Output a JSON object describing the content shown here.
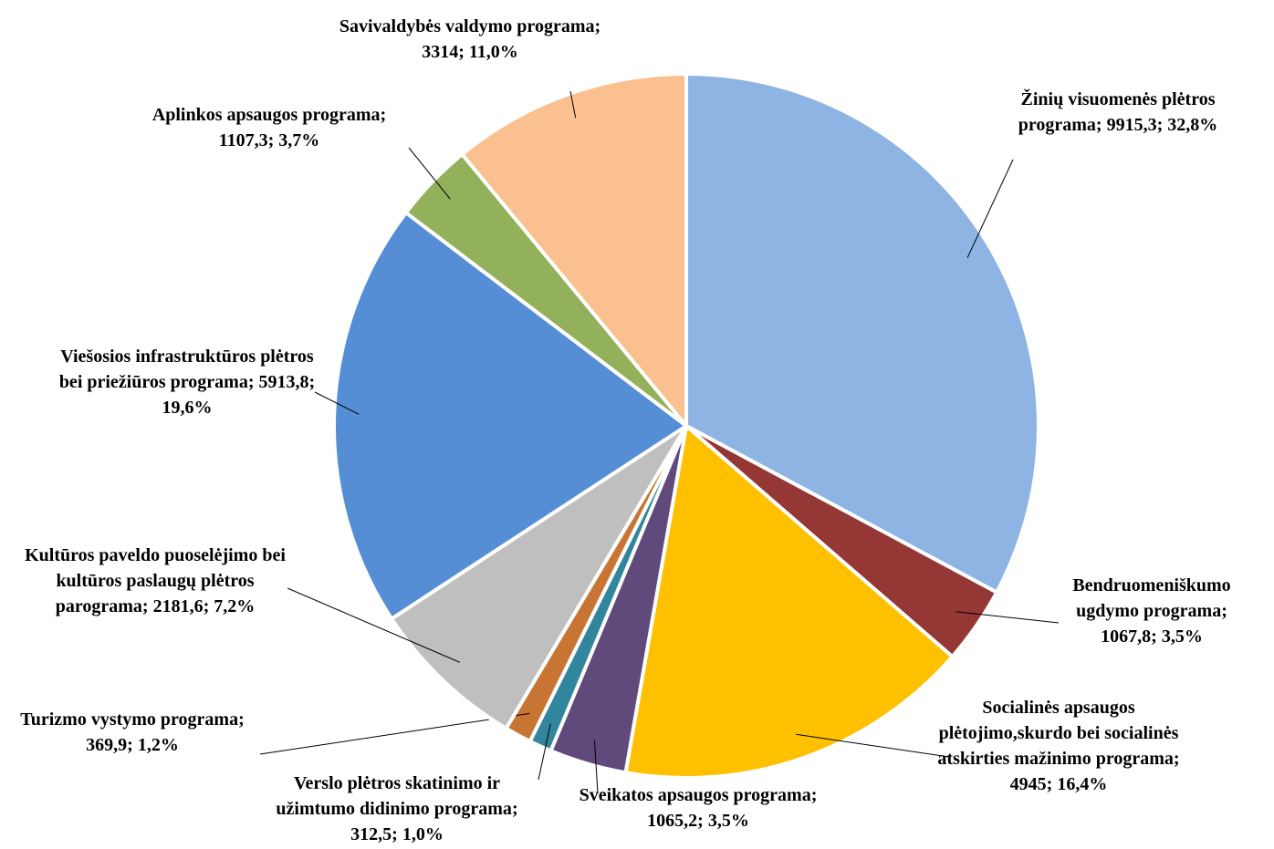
{
  "chart_data": {
    "type": "pie",
    "categories": [
      "Žinių visuomenės plėtros programa",
      "Bendruomeniškumo ugdymo programa",
      "Socialinės apsaugos plėtojimo,skurdo bei socialinės atskirties mažinimo programa",
      "Sveikatos apsaugos programa",
      "Verslo plėtros skatinimo ir užimtumo didinimo programa",
      "Turizmo vystymo programa",
      "Kultūros paveldo puoselėjimo bei kultūros paslaugų plėtros parograma",
      "Viešosios infrastruktūros plėtros bei priežiūros programa",
      "Aplinkos apsaugos programa",
      "Savivaldybės valdymo programa"
    ],
    "values": [
      9915.3,
      1067.8,
      4945,
      1065.2,
      312.5,
      369.9,
      2181.6,
      5913.8,
      1107.3,
      3314
    ],
    "value_labels": [
      "9915,3",
      "1067,8",
      "4945",
      "1065,2",
      "312,5",
      "369,9",
      "2181,6",
      "5913,8",
      "1107,3",
      "3314"
    ],
    "percent_labels": [
      "32,8%",
      "3,5%",
      "16,4%",
      "3,5%",
      "1,0%",
      "1,2%",
      "7,2%",
      "19,6%",
      "3,7%",
      "11,0%"
    ],
    "separator": ";",
    "colors": [
      "#8eb4e3",
      "#953735",
      "#ffc000",
      "#604a7b",
      "#31859c",
      "#c87533",
      "#bfbfbf",
      "#558ed5",
      "#93b05a",
      "#fac090"
    ]
  }
}
